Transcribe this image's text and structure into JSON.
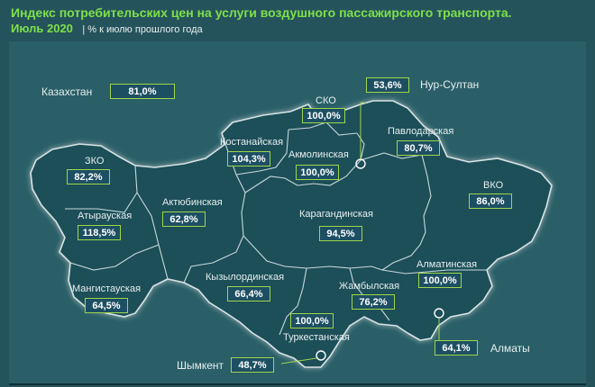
{
  "header": {
    "title": "Индекс потребительских цен на услуги воздушного пассажирского транспорта.",
    "period": "Июль 2020",
    "unit": "| % к июлю прошлого года"
  },
  "colors": {
    "title": "#7ee04a",
    "background": "#25535b",
    "region_fill": "#1f4f59",
    "value_box_border": "#9ed64a"
  },
  "country": {
    "label": "Казахстан",
    "value": "81,0%"
  },
  "regions": {
    "sko": {
      "label": "СКО",
      "value": "100,0%"
    },
    "nur_sultan": {
      "label": "Нур-Султан",
      "value": "53,6%"
    },
    "kostanay": {
      "label": "Костанайская",
      "value": "104,3%"
    },
    "pavlodar": {
      "label": "Павлодарская",
      "value": "80,7%"
    },
    "akmola": {
      "label": "Акмолинская",
      "value": "100,0%"
    },
    "zko": {
      "label": "ЗКО",
      "value": "82,2%"
    },
    "aktobe": {
      "label": "Актюбинская",
      "value": "62,8%"
    },
    "vko": {
      "label": "ВКО",
      "value": "86,0%"
    },
    "atyrau": {
      "label": "Атырауская",
      "value": "118,5%"
    },
    "karaganda": {
      "label": "Карагандинская",
      "value": "94,5%"
    },
    "almaty_reg": {
      "label": "Алматинская",
      "value": "100,0%"
    },
    "kyzylorda": {
      "label": "Кызылординская",
      "value": "66,4%"
    },
    "mangystau": {
      "label": "Мангистауская",
      "value": "64,5%"
    },
    "zhambyl": {
      "label": "Жамбылская",
      "value": "76,2%"
    },
    "turkestan": {
      "label": "Туркестанская",
      "value": "100,0%"
    },
    "almaty_city": {
      "label": "Алматы",
      "value": "64,1%"
    },
    "shymkent": {
      "label": "Шымкент",
      "value": "48,7%"
    }
  }
}
